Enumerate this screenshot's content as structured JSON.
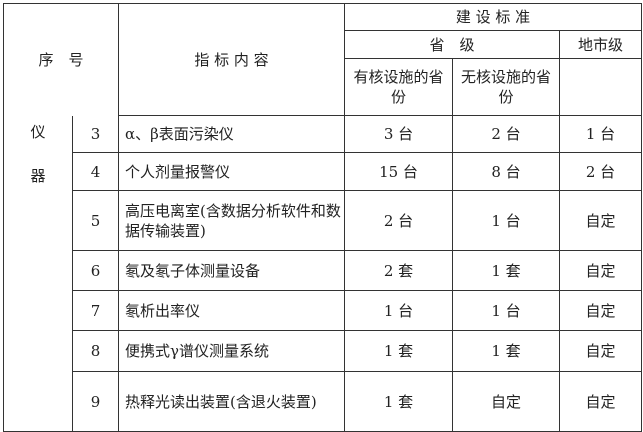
{
  "header": {
    "seq": "序　号",
    "content": "指 标 内 容",
    "standard": "建 设 标 准",
    "province": "省　级",
    "city": "地市级",
    "with_nuclear": "有核设施的省　份",
    "without_nuclear": "无核设施的省　份"
  },
  "category": [
    "仪",
    "器"
  ],
  "rows": [
    {
      "no": "3",
      "item": "α、β表面污染仪",
      "with": "3 台",
      "without": "2 台",
      "city": "1 台"
    },
    {
      "no": "4",
      "item": "个人剂量报警仪",
      "with": "15 台",
      "without": "8 台",
      "city": "2 台"
    },
    {
      "no": "5",
      "item": "高压电离室(含数据分析软件和数据传输装置)",
      "with": "2 台",
      "without": "1 台",
      "city": "自定"
    },
    {
      "no": "6",
      "item": "氡及氡子体测量设备",
      "with": "2 套",
      "without": "1 套",
      "city": "自定"
    },
    {
      "no": "7",
      "item": "氡析出率仪",
      "with": "1 台",
      "without": "1 台",
      "city": "自定"
    },
    {
      "no": "8",
      "item": "便携式γ谱仪测量系统",
      "with": "1 套",
      "without": "1 套",
      "city": "自定"
    },
    {
      "no": "9",
      "item": "热释光读出装置(含退火装置)",
      "with": "1 套",
      "without": "自定",
      "city": "自定"
    }
  ]
}
